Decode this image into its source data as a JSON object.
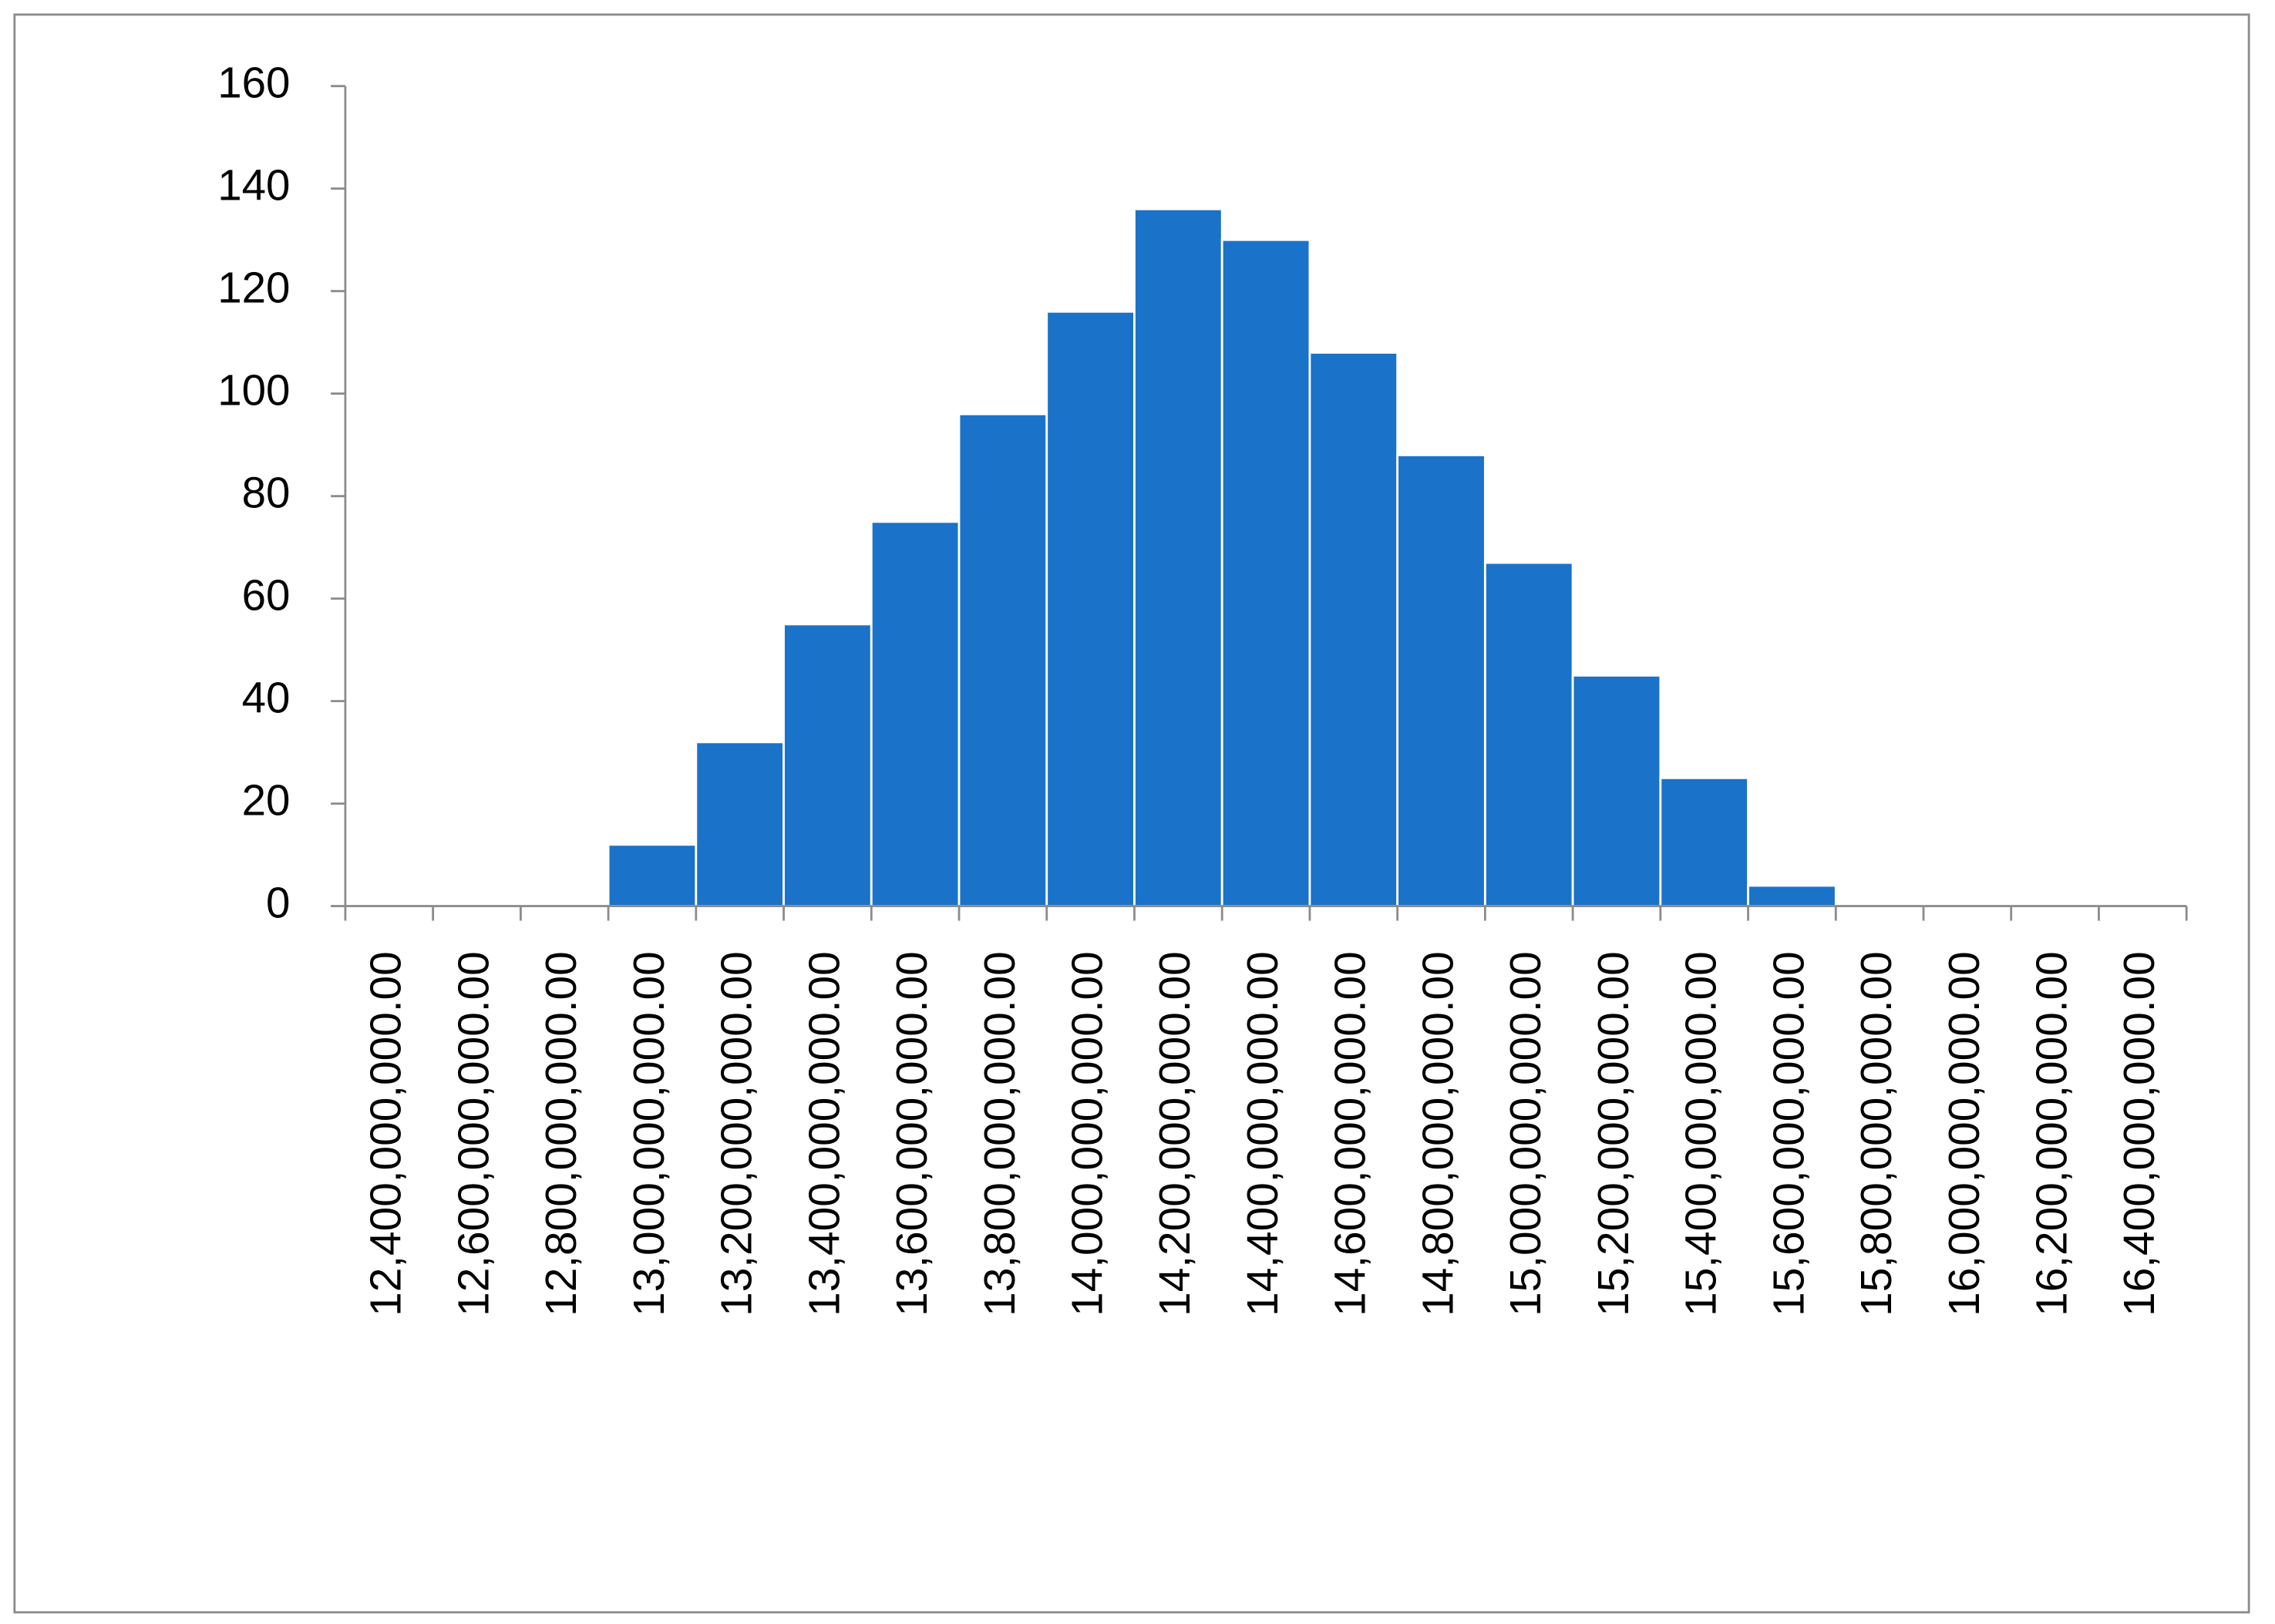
{
  "chart_data": {
    "type": "bar",
    "categories": [
      "12,400,000,000.00",
      "12,600,000,000.00",
      "12,800,000,000.00",
      "13,000,000,000.00",
      "13,200,000,000.00",
      "13,400,000,000.00",
      "13,600,000,000.00",
      "13,800,000,000.00",
      "14,000,000,000.00",
      "14,200,000,000.00",
      "14,400,000,000.00",
      "14,600,000,000.00",
      "14,800,000,000.00",
      "15,000,000,000.00",
      "15,200,000,000.00",
      "15,400,000,000.00",
      "15,600,000,000.00",
      "15,800,000,000.00",
      "16,000,000,000.00",
      "16,200,000,000.00",
      "16,400,000,000.00"
    ],
    "values": [
      0,
      0,
      0,
      12,
      32,
      55,
      75,
      96,
      116,
      136,
      130,
      108,
      88,
      67,
      45,
      25,
      4,
      0,
      0,
      0,
      0
    ],
    "color": "#1a72c9",
    "ylim": [
      0,
      160
    ],
    "yticks": [
      0,
      20,
      40,
      60,
      80,
      100,
      120,
      140,
      160
    ],
    "grid": false
  }
}
